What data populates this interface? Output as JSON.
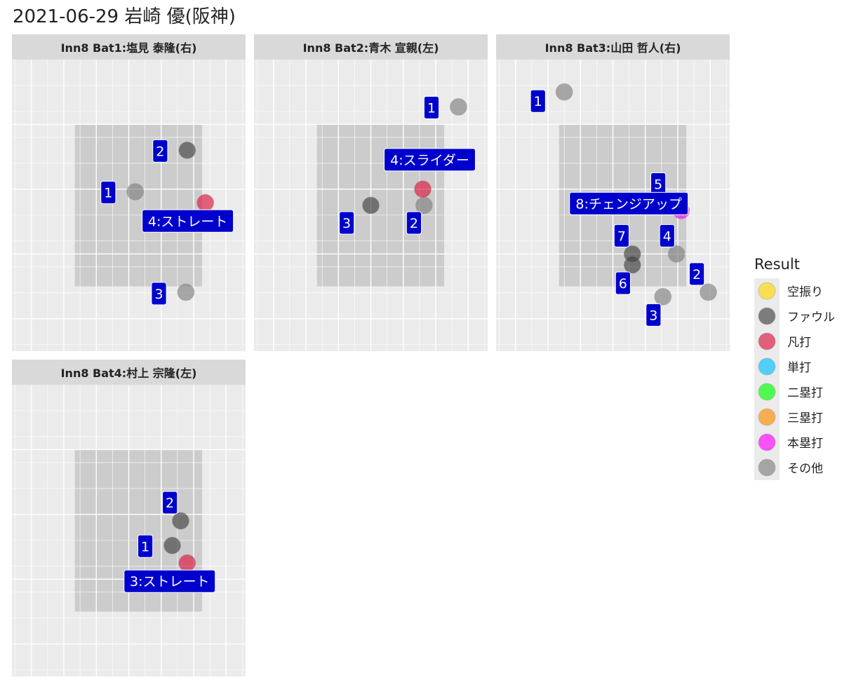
{
  "title": "2021-06-29 岩崎 優(阪神)",
  "legend": {
    "title": "Result",
    "position": "right",
    "items": [
      {
        "label": "空振り",
        "color": "#FFD700"
      },
      {
        "label": "ファウル",
        "color": "#404040"
      },
      {
        "label": "凡打",
        "color": "#DC143C"
      },
      {
        "label": "単打",
        "color": "#00BFFF"
      },
      {
        "label": "二塁打",
        "color": "#00FF00"
      },
      {
        "label": "三塁打",
        "color": "#FF8C00"
      },
      {
        "label": "本塁打",
        "color": "#FF00FF"
      },
      {
        "label": "その他",
        "color": "#808080"
      }
    ]
  },
  "chart_data": {
    "type": "scatter",
    "x_range": [
      -1.8,
      1.8
    ],
    "y_range": [
      0.0,
      4.5
    ],
    "strike_zone": {
      "x": [
        -0.83,
        1.13
      ],
      "y": [
        1.0,
        3.5
      ]
    },
    "grid": true,
    "facets": [
      {
        "title": "Inn8 Bat1:塩見 泰隆(右)",
        "pitches": [
          {
            "n": 1,
            "x": 0.1,
            "y": 2.46,
            "result": "その他",
            "label": "1"
          },
          {
            "n": 2,
            "x": 0.9,
            "y": 3.1,
            "result": "ファウル",
            "label": "2"
          },
          {
            "n": 3,
            "x": 0.88,
            "y": 0.91,
            "result": "その他",
            "label": "3"
          },
          {
            "n": 4,
            "x": 1.18,
            "y": 2.29,
            "result": "凡打",
            "label": "4:ストレート"
          }
        ]
      },
      {
        "title": "Inn8 Bat2:青木 宣親(左)",
        "pitches": [
          {
            "n": 1,
            "x": 1.35,
            "y": 3.77,
            "result": "その他",
            "label": "1"
          },
          {
            "n": 2,
            "x": 0.82,
            "y": 2.25,
            "result": "その他",
            "label": "2"
          },
          {
            "n": 3,
            "x": 0.0,
            "y": 2.25,
            "result": "ファウル",
            "label": "3"
          },
          {
            "n": 4,
            "x": 0.8,
            "y": 2.5,
            "result": "凡打",
            "label": "4:スライダー"
          }
        ]
      },
      {
        "title": "Inn8 Bat3:山田 哲人(右)",
        "pitches": [
          {
            "n": 1,
            "x": -0.75,
            "y": 4.0,
            "result": "その他",
            "label": "1"
          },
          {
            "n": 2,
            "x": 1.47,
            "y": 0.91,
            "result": "その他",
            "label": "2"
          },
          {
            "n": 3,
            "x": 0.77,
            "y": 0.84,
            "result": "その他",
            "label": "3"
          },
          {
            "n": 4,
            "x": 0.98,
            "y": 1.5,
            "result": "その他",
            "label": "4"
          },
          {
            "n": 5,
            "x": 0.67,
            "y": 2.32,
            "result": "空振り",
            "label": "5"
          },
          {
            "n": 6,
            "x": 0.3,
            "y": 1.33,
            "result": "ファウル",
            "label": "6"
          },
          {
            "n": 7,
            "x": 0.3,
            "y": 1.5,
            "result": "ファウル",
            "label": "7"
          },
          {
            "n": 8,
            "x": 1.05,
            "y": 2.17,
            "result": "本塁打",
            "label": "8:チェンジアップ"
          }
        ]
      },
      {
        "title": "Inn8 Bat4:村上 宗隆(左)",
        "pitches": [
          {
            "n": 1,
            "x": 0.67,
            "y": 2.02,
            "result": "ファウル",
            "label": "1"
          },
          {
            "n": 2,
            "x": 0.8,
            "y": 2.4,
            "result": "ファウル",
            "label": "2"
          },
          {
            "n": 3,
            "x": 0.9,
            "y": 1.75,
            "result": "凡打",
            "label": "3:ストレート"
          }
        ]
      }
    ]
  }
}
